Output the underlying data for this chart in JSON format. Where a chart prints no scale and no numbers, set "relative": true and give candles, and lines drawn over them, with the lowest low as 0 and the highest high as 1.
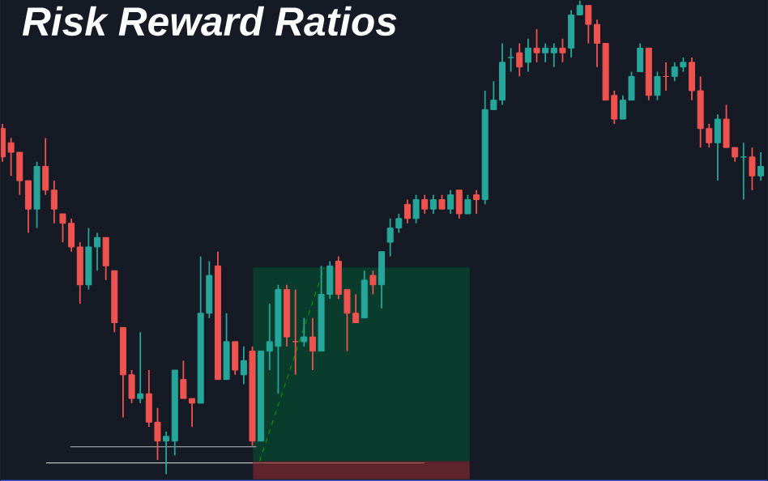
{
  "chart_data": {
    "type": "candlestick",
    "title": "Risk Reward Ratios",
    "relative": true,
    "categories": [
      null,
      null,
      null,
      null,
      null,
      null,
      null,
      null,
      null,
      null,
      null,
      null,
      null,
      null,
      null,
      null,
      null,
      null,
      null,
      null,
      null,
      null,
      null,
      null,
      null,
      null,
      null,
      null,
      null,
      null,
      null,
      null,
      null,
      null,
      null,
      null,
      null,
      null,
      null,
      null,
      null,
      null,
      null,
      null,
      null,
      null,
      null,
      null,
      null,
      null,
      null,
      null,
      null,
      null,
      null,
      null,
      null,
      null,
      null,
      null,
      null,
      null,
      null,
      null,
      null,
      null,
      null,
      null,
      null,
      null,
      null,
      null,
      null,
      null,
      null,
      null,
      null,
      null,
      null,
      null,
      null,
      null,
      null,
      null,
      null,
      null,
      null,
      null,
      null
    ],
    "ohlc": [
      [
        0.73,
        0.74,
        0.66,
        0.67
      ],
      [
        0.7,
        0.71,
        0.63,
        0.68
      ],
      [
        0.68,
        0.68,
        0.59,
        0.62
      ],
      [
        0.62,
        0.62,
        0.51,
        0.56
      ],
      [
        0.56,
        0.66,
        0.52,
        0.65
      ],
      [
        0.65,
        0.71,
        0.59,
        0.6
      ],
      [
        0.6,
        0.62,
        0.53,
        0.56
      ],
      [
        0.55,
        0.55,
        0.49,
        0.53
      ],
      [
        0.53,
        0.54,
        0.47,
        0.48
      ],
      [
        0.48,
        0.49,
        0.36,
        0.4
      ],
      [
        0.4,
        0.52,
        0.39,
        0.48
      ],
      [
        0.48,
        0.51,
        0.43,
        0.5
      ],
      [
        0.5,
        0.5,
        0.41,
        0.44
      ],
      [
        0.43,
        0.43,
        0.3,
        0.32
      ],
      [
        0.31,
        0.31,
        0.12,
        0.21
      ],
      [
        0.21,
        0.22,
        0.15,
        0.16
      ],
      [
        0.16,
        0.3,
        0.15,
        0.17
      ],
      [
        0.17,
        0.22,
        0.1,
        0.11
      ],
      [
        0.11,
        0.14,
        0.03,
        0.07
      ],
      [
        0.07,
        0.09,
        0,
        0.08
      ],
      [
        0.07,
        0.22,
        0.04,
        0.22
      ],
      [
        0.2,
        0.24,
        0.16,
        0.16
      ],
      [
        0.16,
        0.16,
        0.1,
        0.15
      ],
      [
        0.15,
        0.46,
        0.15,
        0.34
      ],
      [
        0.34,
        0.45,
        0.33,
        0.42
      ],
      [
        0.44,
        0.47,
        0.2,
        0.2
      ],
      [
        0.2,
        0.34,
        0.2,
        0.28
      ],
      [
        0.28,
        0.28,
        0.21,
        0.22
      ],
      [
        0.21,
        0.27,
        0.19,
        0.24
      ],
      [
        0.26,
        0.27,
        0.06,
        0.07
      ],
      [
        0.07,
        0.26,
        0.07,
        0.26
      ],
      [
        0.26,
        0.36,
        0.22,
        0.28
      ],
      [
        0.27,
        0.4,
        0.17,
        0.39
      ],
      [
        0.39,
        0.4,
        0.27,
        0.29
      ],
      [
        0.28,
        0.39,
        0.21,
        0.28
      ],
      [
        0.28,
        0.33,
        0.27,
        0.29
      ],
      [
        0.29,
        0.33,
        0.22,
        0.26
      ],
      [
        0.26,
        0.44,
        0.26,
        0.38
      ],
      [
        0.38,
        0.45,
        0.37,
        0.44
      ],
      [
        0.45,
        0.46,
        0.37,
        0.38
      ],
      [
        0.39,
        0.39,
        0.26,
        0.34
      ],
      [
        0.34,
        0.38,
        0.32,
        0.32
      ],
      [
        0.33,
        0.43,
        0.33,
        0.41
      ],
      [
        0.42,
        0.43,
        0.38,
        0.4
      ],
      [
        0.4,
        0.47,
        0.35,
        0.47
      ],
      [
        0.49,
        0.54,
        0.46,
        0.52
      ],
      [
        0.52,
        0.55,
        0.51,
        0.54
      ],
      [
        0.57,
        0.58,
        0.53,
        0.54
      ],
      [
        0.54,
        0.59,
        0.53,
        0.58
      ],
      [
        0.58,
        0.59,
        0.55,
        0.56
      ],
      [
        0.56,
        0.59,
        0.55,
        0.58
      ],
      [
        0.58,
        0.59,
        0.56,
        0.56
      ],
      [
        0.56,
        0.6,
        0.55,
        0.59
      ],
      [
        0.6,
        0.6,
        0.54,
        0.55
      ],
      [
        0.55,
        0.59,
        0.55,
        0.58
      ],
      [
        0.59,
        0.6,
        0.55,
        0.58
      ],
      [
        0.58,
        0.81,
        0.57,
        0.77
      ],
      [
        0.77,
        0.83,
        0.77,
        0.79
      ],
      [
        0.79,
        0.91,
        0.78,
        0.87
      ],
      [
        0.88,
        0.9,
        0.85,
        0.88
      ],
      [
        0.89,
        0.91,
        0.84,
        0.86
      ],
      [
        0.87,
        0.92,
        0.85,
        0.9
      ],
      [
        0.9,
        0.94,
        0.87,
        0.89
      ],
      [
        0.89,
        0.91,
        0.87,
        0.9
      ],
      [
        0.89,
        0.91,
        0.86,
        0.9
      ],
      [
        0.9,
        0.92,
        0.87,
        0.89
      ],
      [
        0.9,
        0.98,
        0.88,
        0.97
      ],
      [
        0.97,
        1,
        0.97,
        0.99
      ],
      [
        0.99,
        0.99,
        0.91,
        0.95
      ],
      [
        0.95,
        0.96,
        0.86,
        0.91
      ],
      [
        0.91,
        0.91,
        0.79,
        0.79
      ],
      [
        0.8,
        0.81,
        0.74,
        0.75
      ],
      [
        0.75,
        0.8,
        0.75,
        0.79
      ],
      [
        0.79,
        0.85,
        0.79,
        0.84
      ],
      [
        0.85,
        0.91,
        0.85,
        0.9
      ],
      [
        0.9,
        0.9,
        0.79,
        0.8
      ],
      [
        0.8,
        0.85,
        0.79,
        0.84
      ],
      [
        0.84,
        0.87,
        0.81,
        0.84
      ],
      [
        0.84,
        0.87,
        0.83,
        0.86
      ],
      [
        0.86,
        0.88,
        0.85,
        0.87
      ],
      [
        0.87,
        0.88,
        0.79,
        0.81
      ],
      [
        0.81,
        0.84,
        0.69,
        0.73
      ],
      [
        0.73,
        0.74,
        0.69,
        0.7
      ],
      [
        0.7,
        0.76,
        0.62,
        0.75
      ],
      [
        0.75,
        0.78,
        0.69,
        0.69
      ],
      [
        0.69,
        0.69,
        0.66,
        0.67
      ],
      [
        0.67,
        0.7,
        0.58,
        0.67
      ],
      [
        0.67,
        0.69,
        0.6,
        0.63
      ],
      [
        0.63,
        0.68,
        0.62,
        0.65
      ]
    ],
    "colors": [
      "#ef5350",
      "#ef5350",
      "#ef5350",
      "#ef5350",
      "#26a69a",
      "#ef5350",
      "#ef5350",
      "#ef5350",
      "#ef5350",
      "#ef5350",
      "#26a69a",
      "#26a69a",
      "#ef5350",
      "#ef5350",
      "#ef5350",
      "#ef5350",
      "#26a69a",
      "#ef5350",
      "#ef5350",
      "#26a69a",
      "#26a69a",
      "#ef5350",
      "#ef5350",
      "#26a69a",
      "#26a69a",
      "#ef5350",
      "#26a69a",
      "#ef5350",
      "#26a69a",
      "#ef5350",
      "#26a69a",
      "#26a69a",
      "#26a69a",
      "#ef5350",
      "#ef5350",
      "#26a69a",
      "#ef5350",
      "#26a69a",
      "#26a69a",
      "#ef5350",
      "#ef5350",
      "#ef5350",
      "#26a69a",
      "#ef5350",
      "#26a69a",
      "#26a69a",
      "#26a69a",
      "#ef5350",
      "#26a69a",
      "#ef5350",
      "#26a69a",
      "#ef5350",
      "#26a69a",
      "#ef5350",
      "#26a69a",
      "#ef5350",
      "#26a69a",
      "#26a69a",
      "#26a69a",
      "#26a69a",
      "#ef5350",
      "#26a69a",
      "#ef5350",
      "#26a69a",
      "#26a69a",
      "#ef5350",
      "#26a69a",
      "#26a69a",
      "#ef5350",
      "#ef5350",
      "#ef5350",
      "#ef5350",
      "#26a69a",
      "#26a69a",
      "#26a69a",
      "#ef5350",
      "#26a69a",
      "#ef5350",
      "#26a69a",
      "#26a69a",
      "#ef5350",
      "#ef5350",
      "#ef5350",
      "#26a69a",
      "#ef5350",
      "#ef5350",
      "#26a69a",
      "#ef5350",
      "#26a69a"
    ]
  }
}
